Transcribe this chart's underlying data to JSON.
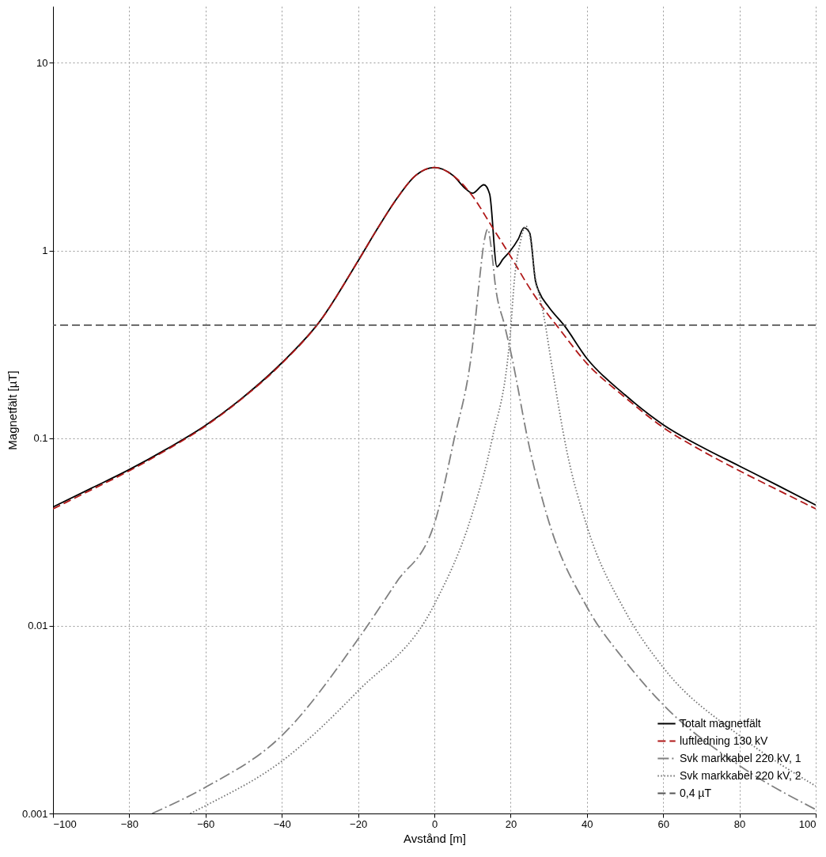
{
  "chart_data": {
    "type": "line",
    "xlabel": "Avstånd [m]",
    "ylabel": "Magnetfält [µT]",
    "log": "y",
    "grid": true,
    "legend": "bottom right",
    "xlim": [
      -100,
      100
    ],
    "xticks": [
      -100,
      -80,
      -60,
      -40,
      -20,
      0,
      20,
      40,
      60,
      80,
      100
    ],
    "ylim": [
      0.001,
      20
    ],
    "yticks": [
      0.001,
      0.01,
      0.1,
      1,
      10
    ],
    "series": [
      {
        "name": "Totalt magnetfält",
        "color": "#000000",
        "line_style": "solid",
        "x": [
          -100,
          -90,
          -80,
          -70,
          -60,
          -50,
          -40,
          -30,
          -20,
          -15,
          -10,
          -5,
          0,
          5,
          8,
          10,
          13,
          14.5,
          16.4,
          18,
          20,
          22,
          23.5,
          25,
          26.5,
          27.5,
          30,
          34,
          40,
          50,
          60,
          70,
          80,
          90,
          100
        ],
        "values": [
          0.043,
          0.054,
          0.068,
          0.088,
          0.117,
          0.166,
          0.252,
          0.42,
          0.88,
          1.3,
          1.87,
          2.5,
          2.77,
          2.5,
          2.15,
          2.02,
          2.24,
          2.0,
          0.82,
          0.9,
          1.0,
          1.15,
          1.32,
          1.24,
          0.69,
          0.6,
          0.5,
          0.4,
          0.266,
          0.17,
          0.118,
          0.09,
          0.071,
          0.056,
          0.044
        ]
      },
      {
        "name": "luftledning 130 kV",
        "color": "#b01818",
        "line_style": "dashed",
        "x": [
          -100,
          -90,
          -80,
          -70,
          -60,
          -50,
          -40,
          -30,
          -20,
          -15,
          -10,
          -5,
          0,
          5,
          10,
          15,
          20,
          25,
          30,
          32,
          40,
          50,
          60,
          70,
          80,
          90,
          100
        ],
        "values": [
          0.042,
          0.053,
          0.067,
          0.087,
          0.116,
          0.165,
          0.25,
          0.42,
          0.88,
          1.3,
          1.87,
          2.5,
          2.77,
          2.5,
          1.95,
          1.35,
          0.93,
          0.63,
          0.45,
          0.4,
          0.25,
          0.165,
          0.114,
          0.086,
          0.067,
          0.053,
          0.042
        ]
      },
      {
        "name": "Svk markkabel 220 kV, 1",
        "color": "#808080",
        "line_style": "dashdot",
        "x": [
          -74,
          -60,
          -40,
          -20,
          -10,
          0,
          5,
          10,
          12,
          13,
          14,
          15,
          16,
          18.4,
          20,
          25,
          30,
          40,
          50,
          60,
          80,
          100
        ],
        "values": [
          0.001,
          0.00138,
          0.0026,
          0.0085,
          0.017,
          0.035,
          0.095,
          0.31,
          0.75,
          1.1,
          1.3,
          1.0,
          0.65,
          0.4,
          0.29,
          0.088,
          0.036,
          0.0126,
          0.0065,
          0.0038,
          0.0018,
          0.00105
        ]
      },
      {
        "name": "Svk markkabel 220 kV, 2",
        "color": "#707070",
        "line_style": "dotted",
        "x": [
          -64,
          -60,
          -40,
          -20,
          0,
          10,
          15,
          20,
          21,
          22.5,
          24,
          25,
          26.3,
          28.6,
          31,
          34.6,
          40,
          50,
          60,
          80,
          100
        ],
        "values": [
          0.001,
          0.0011,
          0.0019,
          0.0045,
          0.013,
          0.04,
          0.096,
          0.38,
          0.7,
          1.1,
          1.35,
          1.2,
          0.76,
          0.46,
          0.23,
          0.088,
          0.034,
          0.012,
          0.006,
          0.0026,
          0.0014
        ]
      }
    ],
    "ref_lines": [
      {
        "axis": "y",
        "value": 0.4,
        "label": "0,4 µT",
        "color": "#555555",
        "line_style": "dashed"
      }
    ]
  }
}
